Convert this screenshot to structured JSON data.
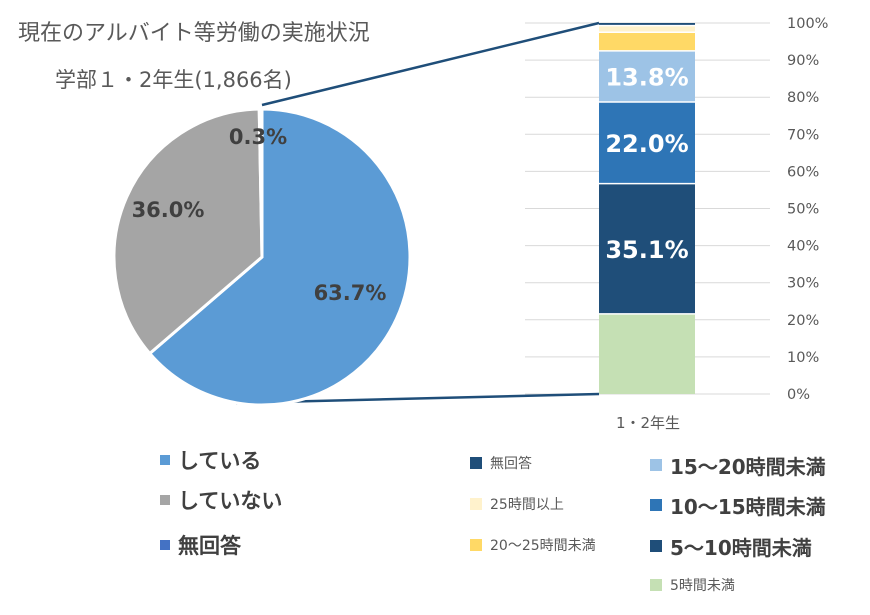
{
  "title": "現在のアルバイト等労働の実施状況",
  "subtitle": "学部１・2年生(1,866名)",
  "chart_data": [
    {
      "type": "pie",
      "labels": [
        "している",
        "していない",
        "無回答"
      ],
      "values": [
        63.7,
        36.0,
        0.3
      ],
      "value_labels": [
        "63.7%",
        "36.0%",
        "0.3%"
      ],
      "colors": [
        "#5B9BD5",
        "#A5A5A5",
        "#4472C4"
      ],
      "legend": [
        {
          "label": "している",
          "color": "#5B9BD5"
        },
        {
          "label": "していない",
          "color": "#A5A5A5"
        },
        {
          "label": "無回答",
          "color": "#4472C4"
        }
      ]
    },
    {
      "type": "bar",
      "stacked": true,
      "categories": [
        "1・2年生"
      ],
      "ylim": [
        0,
        100
      ],
      "yticks": [
        "0%",
        "10%",
        "20%",
        "30%",
        "40%",
        "50%",
        "60%",
        "70%",
        "80%",
        "90%",
        "100%"
      ],
      "grid": true,
      "series": [
        {
          "name": "5時間未満",
          "values": [
            21.6
          ],
          "color": "#C5E0B4",
          "label": ""
        },
        {
          "name": "5～10時間未満",
          "values": [
            35.1
          ],
          "color": "#1F4E79",
          "label": "35.1%"
        },
        {
          "name": "10～15時間未満",
          "values": [
            22.0
          ],
          "color": "#2E75B6",
          "label": "22.0%"
        },
        {
          "name": "15～20時間未満",
          "values": [
            13.8
          ],
          "color": "#9DC3E6",
          "label": "13.8%"
        },
        {
          "name": "20～25時間未満",
          "values": [
            5.0
          ],
          "color": "#FFD966",
          "label": ""
        },
        {
          "name": "25時間以上",
          "values": [
            1.8
          ],
          "color": "#FFF2CC",
          "label": ""
        },
        {
          "name": "無回答",
          "values": [
            0.7
          ],
          "color": "#1F4E79",
          "label": ""
        }
      ],
      "legend": [
        {
          "label": "無回答",
          "color": "#1F4E79"
        },
        {
          "label": "15～20時間未満",
          "color": "#9DC3E6"
        },
        {
          "label": "25時間以上",
          "color": "#FFF2CC"
        },
        {
          "label": "10～15時間未満",
          "color": "#2E75B6"
        },
        {
          "label": "20～25時間未満",
          "color": "#FFD966"
        },
        {
          "label": "5～10時間未満",
          "color": "#1F4E79"
        },
        {
          "label": "5時間未満",
          "color": "#C5E0B4"
        }
      ]
    }
  ]
}
